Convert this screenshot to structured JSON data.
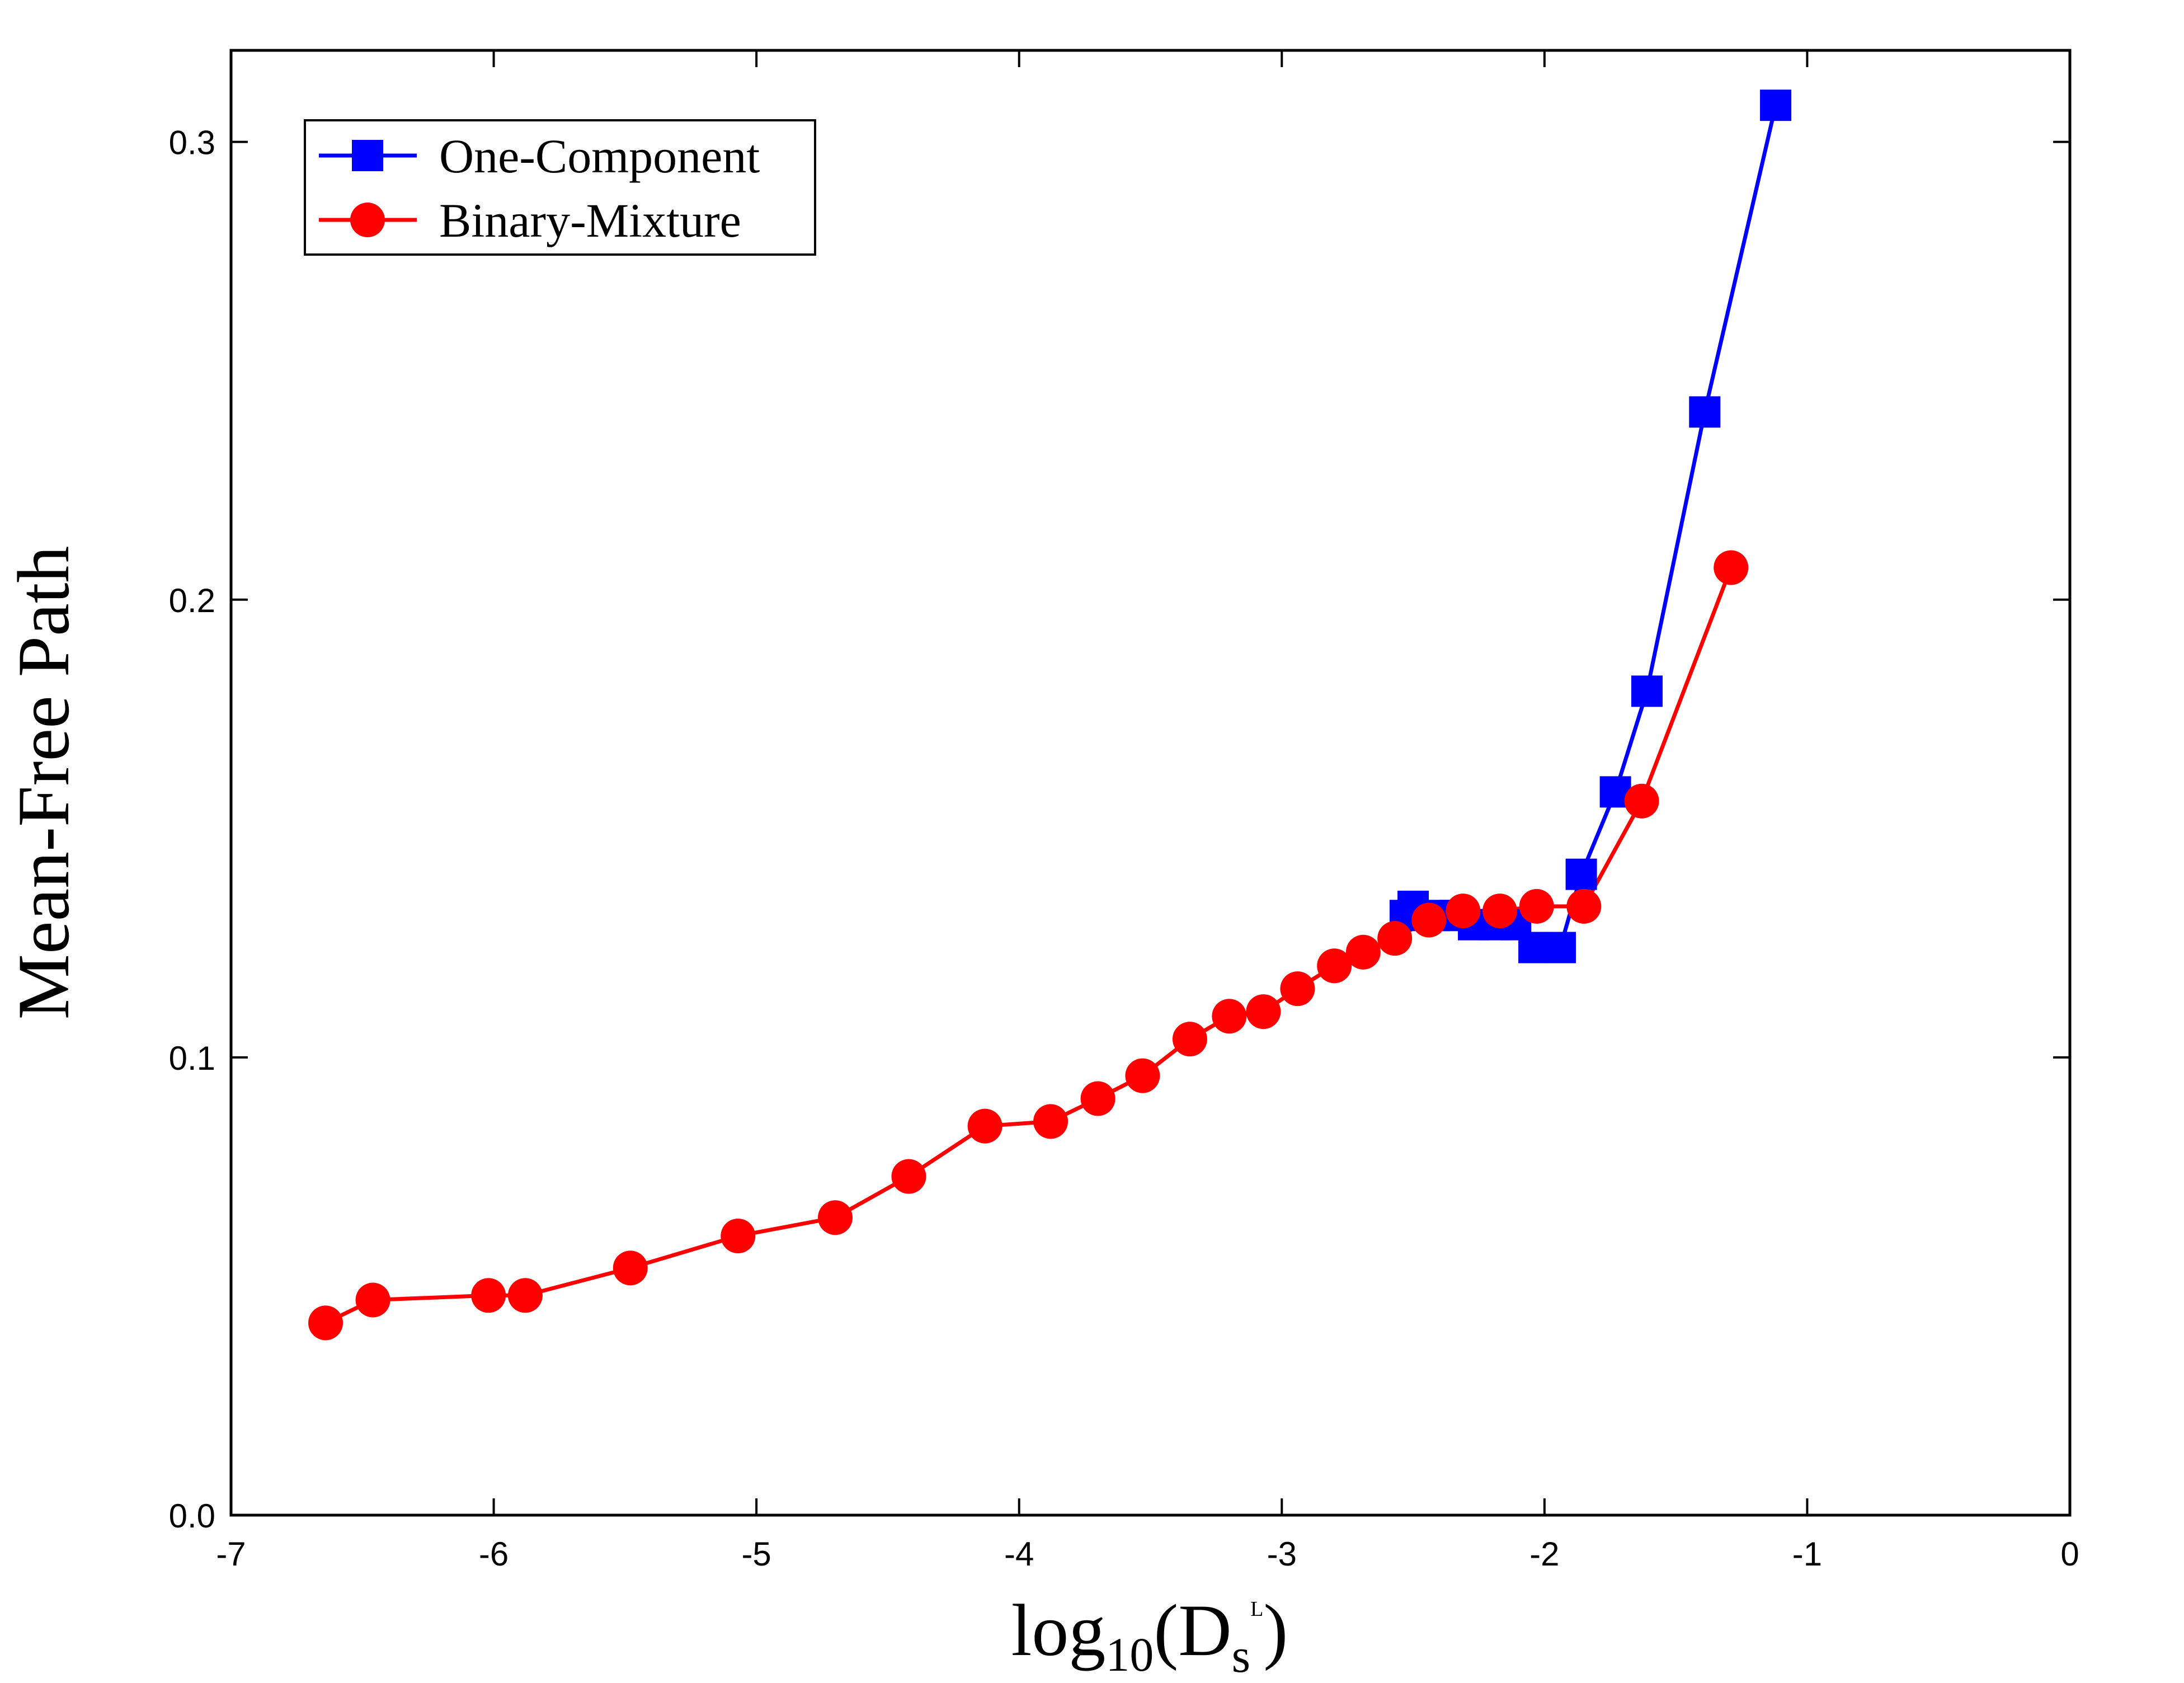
{
  "chart_data": {
    "type": "line",
    "title": "",
    "xlabel": {
      "main": "log",
      "sub": "10",
      "open": "(D",
      "sub2": "s",
      "sup": "L",
      "close": ")"
    },
    "ylabel": "Mean-Free Path",
    "xlim": [
      -7,
      0
    ],
    "ylim": [
      0.0,
      0.32
    ],
    "x_ticks": [
      -7,
      -6,
      -5,
      -4,
      -3,
      -2,
      -1,
      0
    ],
    "x_tick_labels": [
      "-7",
      "-6",
      "-5",
      "-4",
      "-3",
      "-2",
      "-1",
      "0"
    ],
    "y_ticks": [
      0.0,
      0.1,
      0.2,
      0.3
    ],
    "y_tick_labels": [
      "0.0",
      "0.1",
      "0.2",
      "0.3"
    ],
    "grid": false,
    "legend_position": "top-left",
    "series": [
      {
        "name": "One-Component",
        "color": "#0000ff",
        "marker": "square",
        "points": [
          [
            -2.53,
            0.131
          ],
          [
            -2.5,
            0.133
          ],
          [
            -2.42,
            0.131
          ],
          [
            -2.34,
            0.131
          ],
          [
            -2.27,
            0.129
          ],
          [
            -2.19,
            0.129
          ],
          [
            -2.11,
            0.129
          ],
          [
            -2.04,
            0.124
          ],
          [
            -1.94,
            0.124
          ],
          [
            -1.86,
            0.14
          ],
          [
            -1.73,
            0.158
          ],
          [
            -1.61,
            0.18
          ],
          [
            -1.39,
            0.241
          ],
          [
            -1.12,
            0.308
          ]
        ]
      },
      {
        "name": "Binary-Mixture",
        "color": "#ff0000",
        "marker": "circle",
        "points": [
          [
            -6.64,
            0.042
          ],
          [
            -6.46,
            0.047
          ],
          [
            -6.02,
            0.048
          ],
          [
            -5.88,
            0.048
          ],
          [
            -5.48,
            0.054
          ],
          [
            -5.07,
            0.061
          ],
          [
            -4.7,
            0.065
          ],
          [
            -4.42,
            0.074
          ],
          [
            -4.13,
            0.085
          ],
          [
            -3.88,
            0.086
          ],
          [
            -3.7,
            0.091
          ],
          [
            -3.53,
            0.096
          ],
          [
            -3.35,
            0.104
          ],
          [
            -3.2,
            0.109
          ],
          [
            -3.07,
            0.11
          ],
          [
            -2.94,
            0.115
          ],
          [
            -2.8,
            0.12
          ],
          [
            -2.69,
            0.123
          ],
          [
            -2.57,
            0.126
          ],
          [
            -2.44,
            0.13
          ],
          [
            -2.31,
            0.132
          ],
          [
            -2.17,
            0.132
          ],
          [
            -2.03,
            0.133
          ],
          [
            -1.85,
            0.133
          ],
          [
            -1.63,
            0.156
          ],
          [
            -1.29,
            0.207
          ]
        ]
      }
    ]
  }
}
